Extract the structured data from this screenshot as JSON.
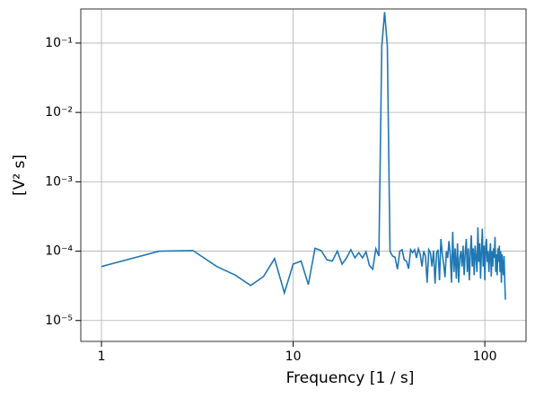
{
  "chart_data": {
    "type": "line",
    "xlabel": "Frequency [1 / s]",
    "ylabel": "[V² s]",
    "xscale": "log",
    "yscale": "log",
    "grid": true,
    "color": "#1f77b4",
    "xlim": [
      0.78,
      164
    ],
    "ylim": [
      5e-06,
      0.31
    ],
    "xticks": [
      1,
      10,
      100
    ],
    "yticks": [
      {
        "value": 1e-05,
        "label": "10⁻⁵"
      },
      {
        "value": 0.0001,
        "label": "10⁻⁴"
      },
      {
        "value": 0.001,
        "label": "10⁻³"
      },
      {
        "value": 0.01,
        "label": "10⁻²"
      },
      {
        "value": 0.1,
        "label": "10⁻¹"
      }
    ],
    "x": [
      1,
      2,
      3,
      4,
      5,
      6,
      7,
      8,
      9,
      10,
      11,
      12,
      13,
      14,
      15,
      16,
      17,
      18,
      19,
      20,
      21,
      22,
      23,
      24,
      25,
      26,
      27,
      28,
      29,
      30,
      31,
      32,
      33,
      34,
      35,
      36,
      37,
      38,
      39,
      40,
      41,
      42,
      43,
      44,
      45,
      46,
      47,
      48,
      49,
      50,
      51,
      52,
      53,
      54,
      55,
      56,
      57,
      58,
      59,
      60,
      61,
      62,
      63,
      64,
      65,
      66,
      67,
      68,
      69,
      70,
      71,
      72,
      73,
      74,
      75,
      76,
      77,
      78,
      79,
      80,
      81,
      82,
      83,
      84,
      85,
      86,
      87,
      88,
      89,
      90,
      91,
      92,
      93,
      94,
      95,
      96,
      97,
      98,
      99,
      100,
      101,
      102,
      103,
      104,
      105,
      106,
      107,
      108,
      109,
      110,
      111,
      112,
      113,
      114,
      115,
      116,
      117,
      118,
      119,
      120,
      121,
      122,
      123,
      124,
      125,
      126,
      127,
      128
    ],
    "values": [
      6e-05,
      0.0001,
      0.000102,
      6e-05,
      4.5e-05,
      3.2e-05,
      4.3e-05,
      7.8e-05,
      2.5e-05,
      6.5e-05,
      7.2e-05,
      3.3e-05,
      0.00011,
      0.000102,
      7.5e-05,
      7.2e-05,
      0.0001,
      6.5e-05,
      8e-05,
      0.000105,
      8e-05,
      9.5e-05,
      8e-05,
      9.8e-05,
      6.2e-05,
      5.5e-05,
      0.000108,
      8.5e-05,
      0.09,
      0.28,
      0.09,
      0.0001,
      8.5e-05,
      8.2e-05,
      5.5e-05,
      0.0001,
      0.000105,
      7.5e-05,
      7.2e-05,
      5.6e-05,
      0.000105,
      9.5e-05,
      0.000105,
      8e-05,
      0.000108,
      9e-05,
      6e-05,
      0.0001,
      8.5e-05,
      3.5e-05,
      0.000105,
      9.5e-05,
      6e-05,
      0.000102,
      3.4e-05,
      9.5e-05,
      0.000105,
      3.8e-05,
      0.00015,
      9e-05,
      6.5e-05,
      4.2e-05,
      0.0001,
      8e-05,
      0.00014,
      9e-05,
      3.5e-05,
      0.00019,
      5e-05,
      0.00011,
      4e-05,
      0.00013,
      3.5e-05,
      8e-05,
      0.0001,
      6e-05,
      0.00012,
      4.5e-05,
      9.5e-05,
      0.00015,
      5e-05,
      0.00011,
      3.8e-05,
      9e-05,
      0.00017,
      6e-05,
      0.00011,
      4.5e-05,
      0.00012,
      8e-05,
      5e-05,
      0.00022,
      7e-05,
      0.00013,
      4e-05,
      0.0001,
      0.00021,
      6e-05,
      0.00012,
      3.8e-05,
      0.00011,
      0.00015,
      7e-05,
      0.0001,
      5e-05,
      9e-05,
      0.00013,
      4.3e-05,
      0.0001,
      6e-05,
      0.00011,
      8e-05,
      0.00016,
      5e-05,
      9e-05,
      4.5e-05,
      0.00011,
      7e-05,
      0.00012,
      5e-05,
      0.0001,
      3.5e-05,
      9e-05,
      6e-05,
      4.5e-05,
      8.5e-05,
      3.8e-05,
      2e-05
    ]
  }
}
